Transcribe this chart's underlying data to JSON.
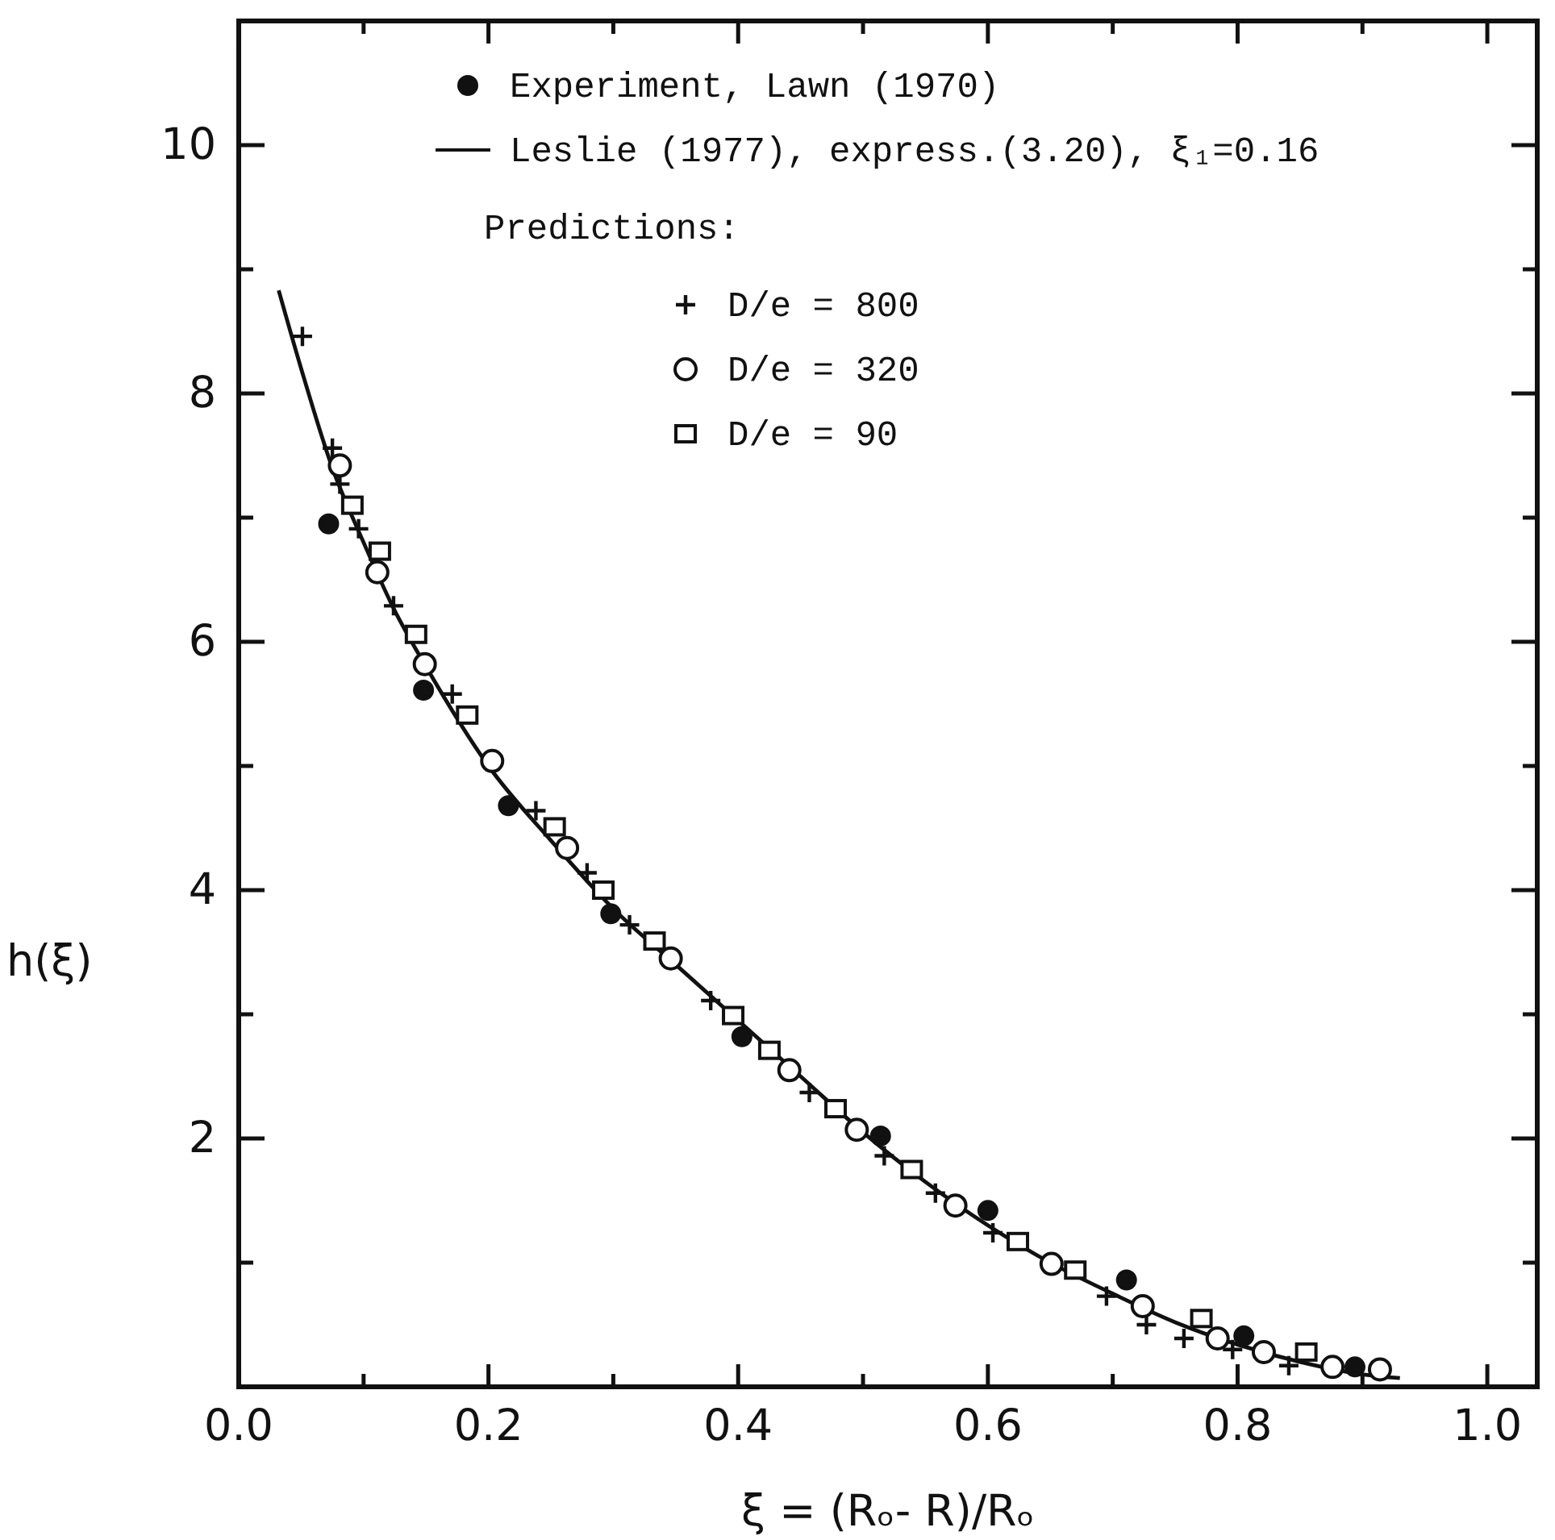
{
  "chart_data": {
    "type": "scatter",
    "xlabel": "ξ = (Rₒ- R)/Rₒ",
    "ylabel": "h(ξ)",
    "legend": "top",
    "legend_title": "Predictions:",
    "xlim": [
      0,
      1.04
    ],
    "ylim": [
      0,
      11
    ],
    "xticks": [
      {
        "value": 0,
        "label": "0.0"
      },
      {
        "value": 0.1,
        "label": null
      },
      {
        "value": 0.2,
        "label": "0.2"
      },
      {
        "value": 0.3,
        "label": null
      },
      {
        "value": 0.4,
        "label": "0.4"
      },
      {
        "value": 0.5,
        "label": null
      },
      {
        "value": 0.6,
        "label": "0.6"
      },
      {
        "value": 0.7,
        "label": null
      },
      {
        "value": 0.8,
        "label": "0.8"
      },
      {
        "value": 0.9,
        "label": null
      },
      {
        "value": 1.0,
        "label": "1.0"
      }
    ],
    "yticks": [
      {
        "value": 1,
        "label": null
      },
      2,
      {
        "value": 3,
        "label": null
      },
      4,
      {
        "value": 5,
        "label": null
      },
      6,
      {
        "value": 7,
        "label": null
      },
      8,
      {
        "value": 9,
        "label": null
      },
      10
    ],
    "grid": false,
    "series": [
      {
        "name": "Experiment, Lawn (1970)",
        "marker": "circle",
        "color": "#111111",
        "x": [
          0.072,
          0.148,
          0.216,
          0.298,
          0.403,
          0.514,
          0.6,
          0.711,
          0.805,
          0.894
        ],
        "values": [
          6.95,
          5.61,
          4.68,
          3.81,
          2.82,
          2.02,
          1.42,
          0.86,
          0.41,
          0.16
        ]
      },
      {
        "name": "Leslie (1977), express.(3.20), ξ₁=0.16",
        "type": "line",
        "line_style": "solid",
        "color": "#111111",
        "x": [
          0.032,
          0.05,
          0.075,
          0.1,
          0.125,
          0.15,
          0.2,
          0.25,
          0.3,
          0.35,
          0.4,
          0.45,
          0.5,
          0.55,
          0.6,
          0.65,
          0.7,
          0.75,
          0.8,
          0.85,
          0.9,
          0.93
        ],
        "values": [
          8.83,
          8.2,
          7.4,
          6.8,
          6.25,
          5.8,
          5.0,
          4.4,
          3.85,
          3.4,
          2.95,
          2.5,
          2.05,
          1.65,
          1.3,
          1.0,
          0.75,
          0.52,
          0.34,
          0.2,
          0.1,
          0.07
        ]
      },
      {
        "name": "D/e = 800",
        "marker": "cross",
        "color": "#111111",
        "x": [
          0.051,
          0.075,
          0.081,
          0.096,
          0.124,
          0.171,
          0.238,
          0.279,
          0.313,
          0.378,
          0.457,
          0.517,
          0.558,
          0.604,
          0.695,
          0.727,
          0.757,
          0.796,
          0.841
        ],
        "values": [
          8.46,
          7.56,
          7.27,
          6.91,
          6.29,
          5.58,
          4.64,
          4.14,
          3.72,
          3.11,
          2.37,
          1.86,
          1.56,
          1.24,
          0.73,
          0.5,
          0.39,
          0.3,
          0.17
        ]
      },
      {
        "name": "D/e = 320",
        "marker": "circle",
        "color": "#111111",
        "x": [
          0.081,
          0.111,
          0.149,
          0.203,
          0.263,
          0.346,
          0.441,
          0.495,
          0.574,
          0.651,
          0.724,
          0.784,
          0.821,
          0.876,
          0.914
        ],
        "values": [
          7.42,
          6.56,
          5.82,
          5.04,
          4.34,
          3.45,
          2.55,
          2.07,
          1.46,
          0.99,
          0.65,
          0.39,
          0.28,
          0.16,
          0.14
        ]
      },
      {
        "name": "D/e = 90",
        "marker": "square",
        "color": "#111111",
        "x": [
          0.091,
          0.113,
          0.142,
          0.183,
          0.253,
          0.292,
          0.333,
          0.396,
          0.425,
          0.478,
          0.539,
          0.624,
          0.67,
          0.771,
          0.855
        ],
        "values": [
          7.1,
          6.73,
          6.06,
          5.41,
          4.51,
          4.0,
          3.59,
          2.99,
          2.71,
          2.24,
          1.75,
          1.17,
          0.94,
          0.55,
          0.28
        ]
      }
    ]
  }
}
